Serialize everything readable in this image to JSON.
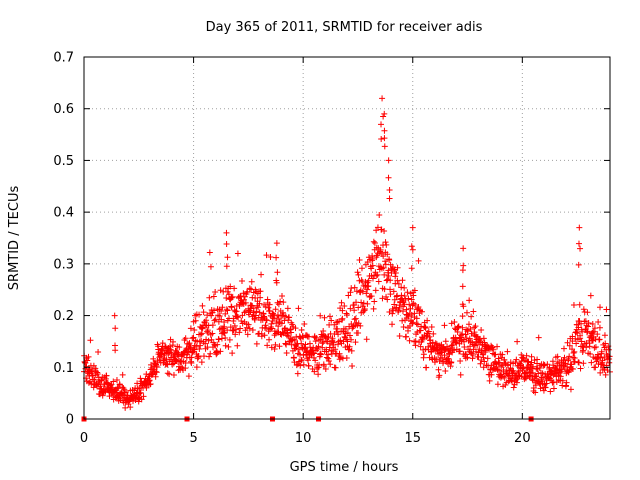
{
  "chart_data": {
    "type": "scatter",
    "title": "Day 365 of 2011, SRMTID for receiver adis",
    "xlabel": "GPS time / hours",
    "ylabel": "SRMTID / TECUs",
    "xlim": [
      0,
      24
    ],
    "ylim": [
      0,
      0.7
    ],
    "xticks": [
      0,
      5,
      10,
      15,
      20
    ],
    "xtick_labels": [
      "0",
      "5",
      "10",
      "15",
      "20"
    ],
    "yticks": [
      0,
      0.1,
      0.2,
      0.3,
      0.4,
      0.5,
      0.6,
      0.7
    ],
    "ytick_labels": [
      "0",
      "0.1",
      "0.2",
      "0.3",
      "0.4",
      "0.5",
      "0.6",
      "0.7"
    ],
    "grid": true,
    "marker": "+",
    "color": "#ff0000",
    "envelope": {
      "description": "approximate trend of SRMTID vs time (hours, TECU) used to render the dense point cloud",
      "hours": [
        0,
        0.5,
        1,
        1.5,
        2,
        2.5,
        3,
        3.5,
        4,
        4.5,
        5,
        5.5,
        6,
        6.5,
        7,
        7.5,
        8,
        8.5,
        9,
        9.5,
        10,
        10.5,
        11,
        11.5,
        12,
        12.5,
        13,
        13.5,
        14,
        14.5,
        15,
        15.5,
        16,
        16.5,
        17,
        17.5,
        18,
        18.5,
        19,
        19.5,
        20,
        20.5,
        21,
        21.5,
        22,
        22.5,
        23,
        23.5,
        24
      ],
      "center": [
        0.1,
        0.08,
        0.06,
        0.05,
        0.04,
        0.05,
        0.08,
        0.13,
        0.12,
        0.12,
        0.14,
        0.17,
        0.18,
        0.2,
        0.21,
        0.22,
        0.2,
        0.19,
        0.18,
        0.15,
        0.13,
        0.12,
        0.14,
        0.15,
        0.17,
        0.22,
        0.26,
        0.32,
        0.25,
        0.22,
        0.2,
        0.15,
        0.13,
        0.12,
        0.15,
        0.16,
        0.15,
        0.12,
        0.1,
        0.08,
        0.1,
        0.09,
        0.08,
        0.09,
        0.1,
        0.15,
        0.16,
        0.13,
        0.12
      ],
      "spread": [
        0.03,
        0.03,
        0.02,
        0.02,
        0.02,
        0.02,
        0.02,
        0.03,
        0.03,
        0.04,
        0.05,
        0.06,
        0.06,
        0.07,
        0.06,
        0.05,
        0.05,
        0.05,
        0.05,
        0.05,
        0.04,
        0.04,
        0.05,
        0.05,
        0.06,
        0.07,
        0.08,
        0.09,
        0.07,
        0.06,
        0.06,
        0.05,
        0.04,
        0.04,
        0.05,
        0.05,
        0.04,
        0.04,
        0.03,
        0.03,
        0.03,
        0.03,
        0.03,
        0.03,
        0.04,
        0.05,
        0.05,
        0.04,
        0.04
      ]
    },
    "peaks": [
      {
        "x": 1.4,
        "y": 0.2
      },
      {
        "x": 6.5,
        "y": 0.36
      },
      {
        "x": 8.8,
        "y": 0.34
      },
      {
        "x": 13.6,
        "y": 0.62
      },
      {
        "x": 13.7,
        "y": 0.59
      },
      {
        "x": 13.9,
        "y": 0.5
      },
      {
        "x": 15.0,
        "y": 0.37
      },
      {
        "x": 17.3,
        "y": 0.33
      },
      {
        "x": 22.6,
        "y": 0.37
      }
    ],
    "gap_markers": [
      {
        "x": 0.0,
        "y": 0
      },
      {
        "x": 4.7,
        "y": 0
      },
      {
        "x": 8.6,
        "y": 0
      },
      {
        "x": 10.7,
        "y": 0
      },
      {
        "x": 20.4,
        "y": 0
      }
    ]
  }
}
